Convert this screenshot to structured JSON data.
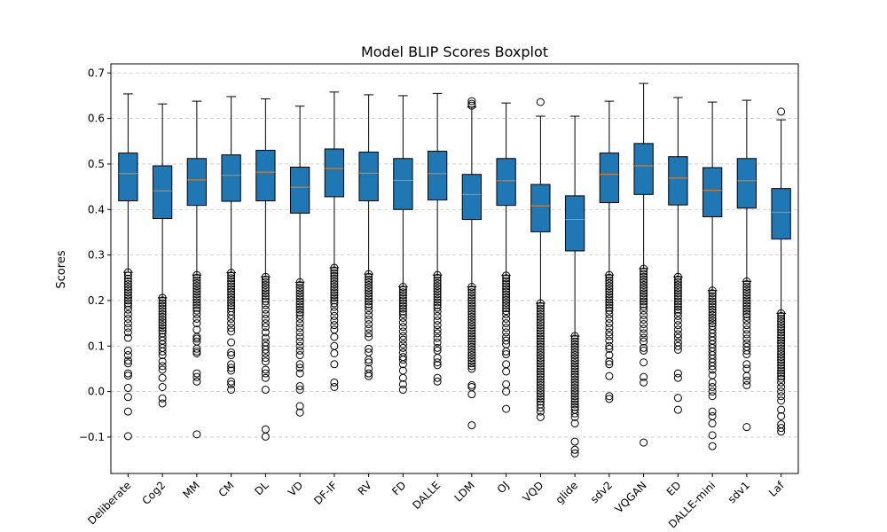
{
  "chart_data": {
    "type": "boxplot",
    "title": "Model BLIP Scores Boxplot",
    "xlabel": "",
    "ylabel": "Scores",
    "ylim": [
      -0.18,
      0.72
    ],
    "yticks": [
      -0.1,
      0.0,
      0.1,
      0.2,
      0.3,
      0.4,
      0.5,
      0.6,
      0.7
    ],
    "ytick_labels": [
      "−0.1",
      "0.0",
      "0.1",
      "0.2",
      "0.3",
      "0.4",
      "0.5",
      "0.6",
      "0.7"
    ],
    "grid": "y-dashed",
    "box_color": "#1f77b4",
    "median_color": "#ff7f0e",
    "categories": [
      "Deliberate",
      "Cog2",
      "MM",
      "CM",
      "DL",
      "VD",
      "DF-IF",
      "RV",
      "FD",
      "DALLE",
      "LDM",
      "OJ",
      "VQD",
      "glide",
      "sdv2",
      "VQGAN",
      "ED",
      "DALLE-mini",
      "sdv1",
      "Laf"
    ],
    "boxes": [
      {
        "label": "Deliberate",
        "whislo": 0.262,
        "q1": 0.419,
        "med": 0.479,
        "q3": 0.524,
        "whishi": 0.654,
        "fliers": [
          0.262,
          0.255,
          0.248,
          0.242,
          0.236,
          0.23,
          0.224,
          0.218,
          0.212,
          0.206,
          0.2,
          0.194,
          0.188,
          0.18,
          0.17,
          0.16,
          0.15,
          0.14,
          0.13,
          0.118,
          0.09,
          0.08,
          0.068,
          0.062,
          0.04,
          0.035,
          0.008,
          -0.012,
          -0.044,
          -0.098
        ]
      },
      {
        "label": "Cog2",
        "whislo": 0.206,
        "q1": 0.38,
        "med": 0.441,
        "q3": 0.496,
        "whishi": 0.632,
        "fliers": [
          0.206,
          0.2,
          0.194,
          0.188,
          0.182,
          0.176,
          0.17,
          0.164,
          0.158,
          0.152,
          0.146,
          0.14,
          0.134,
          0.128,
          0.12,
          0.112,
          0.104,
          0.096,
          0.088,
          0.08,
          0.066,
          0.056,
          0.048,
          0.03,
          0.01,
          -0.015,
          -0.026
        ]
      },
      {
        "label": "MM",
        "whislo": 0.256,
        "q1": 0.409,
        "med": 0.465,
        "q3": 0.512,
        "whishi": 0.638,
        "fliers": [
          0.256,
          0.25,
          0.244,
          0.238,
          0.232,
          0.226,
          0.22,
          0.214,
          0.208,
          0.202,
          0.196,
          0.19,
          0.184,
          0.178,
          0.17,
          0.16,
          0.15,
          0.136,
          0.12,
          0.116,
          0.11,
          0.094,
          0.088,
          0.084,
          0.04,
          0.032,
          0.022,
          -0.094
        ]
      },
      {
        "label": "CM",
        "whislo": 0.261,
        "q1": 0.418,
        "med": 0.475,
        "q3": 0.52,
        "whishi": 0.648,
        "fliers": [
          0.261,
          0.255,
          0.249,
          0.243,
          0.237,
          0.231,
          0.225,
          0.219,
          0.213,
          0.207,
          0.201,
          0.195,
          0.189,
          0.183,
          0.176,
          0.168,
          0.16,
          0.15,
          0.14,
          0.132,
          0.108,
          0.086,
          0.08,
          0.06,
          0.052,
          0.046,
          0.022,
          0.016,
          0.004
        ]
      },
      {
        "label": "DL",
        "whislo": 0.252,
        "q1": 0.419,
        "med": 0.482,
        "q3": 0.53,
        "whishi": 0.643,
        "fliers": [
          0.252,
          0.246,
          0.24,
          0.234,
          0.228,
          0.222,
          0.216,
          0.21,
          0.204,
          0.198,
          0.19,
          0.18,
          0.17,
          0.16,
          0.15,
          0.142,
          0.13,
          0.118,
          0.108,
          0.1,
          0.092,
          0.084,
          0.074,
          0.066,
          0.048,
          0.04,
          0.03,
          0.004,
          -0.083,
          -0.099
        ]
      },
      {
        "label": "VD",
        "whislo": 0.24,
        "q1": 0.392,
        "med": 0.449,
        "q3": 0.493,
        "whishi": 0.627,
        "fliers": [
          0.24,
          0.234,
          0.228,
          0.222,
          0.216,
          0.21,
          0.204,
          0.198,
          0.192,
          0.186,
          0.18,
          0.174,
          0.168,
          0.16,
          0.15,
          0.14,
          0.13,
          0.12,
          0.11,
          0.1,
          0.09,
          0.08,
          0.06,
          0.052,
          0.04,
          0.012,
          0.004,
          -0.032,
          -0.046
        ]
      },
      {
        "label": "DF-IF",
        "whislo": 0.272,
        "q1": 0.428,
        "med": 0.49,
        "q3": 0.533,
        "whishi": 0.658,
        "fliers": [
          0.272,
          0.266,
          0.26,
          0.254,
          0.248,
          0.242,
          0.236,
          0.23,
          0.224,
          0.218,
          0.212,
          0.206,
          0.2,
          0.194,
          0.186,
          0.176,
          0.166,
          0.156,
          0.146,
          0.136,
          0.12,
          0.1,
          0.084,
          0.06,
          0.02,
          0.01
        ]
      },
      {
        "label": "RV",
        "whislo": 0.258,
        "q1": 0.419,
        "med": 0.48,
        "q3": 0.526,
        "whishi": 0.652,
        "fliers": [
          0.258,
          0.252,
          0.246,
          0.24,
          0.234,
          0.228,
          0.222,
          0.216,
          0.21,
          0.204,
          0.198,
          0.192,
          0.186,
          0.178,
          0.168,
          0.158,
          0.148,
          0.138,
          0.128,
          0.12,
          0.094,
          0.086,
          0.07,
          0.064,
          0.05,
          0.04,
          0.034
        ]
      },
      {
        "label": "FD",
        "whislo": 0.23,
        "q1": 0.4,
        "med": 0.464,
        "q3": 0.512,
        "whishi": 0.65,
        "fliers": [
          0.23,
          0.224,
          0.218,
          0.212,
          0.206,
          0.2,
          0.194,
          0.188,
          0.182,
          0.176,
          0.17,
          0.162,
          0.152,
          0.142,
          0.132,
          0.122,
          0.114,
          0.104,
          0.096,
          0.086,
          0.076,
          0.07,
          0.06,
          0.046,
          0.03,
          0.016,
          0.004
        ]
      },
      {
        "label": "DALLE",
        "whislo": 0.256,
        "q1": 0.421,
        "med": 0.479,
        "q3": 0.528,
        "whishi": 0.655,
        "fliers": [
          0.256,
          0.25,
          0.244,
          0.238,
          0.232,
          0.226,
          0.22,
          0.214,
          0.208,
          0.202,
          0.196,
          0.19,
          0.184,
          0.176,
          0.166,
          0.156,
          0.146,
          0.136,
          0.128,
          0.118,
          0.108,
          0.096,
          0.09,
          0.074,
          0.064,
          0.058,
          0.03,
          0.022
        ]
      },
      {
        "label": "LDM",
        "whislo": 0.23,
        "q1": 0.378,
        "med": 0.433,
        "q3": 0.477,
        "whishi": 0.625,
        "fliers": [
          0.638,
          0.632,
          0.628,
          0.23,
          0.224,
          0.218,
          0.212,
          0.206,
          0.2,
          0.194,
          0.188,
          0.182,
          0.176,
          0.17,
          0.164,
          0.158,
          0.152,
          0.146,
          0.14,
          0.134,
          0.128,
          0.122,
          0.116,
          0.11,
          0.104,
          0.098,
          0.092,
          0.086,
          0.08,
          0.074,
          0.068,
          0.062,
          0.056,
          0.05,
          0.014,
          0.01,
          -0.006,
          -0.074
        ]
      },
      {
        "label": "OJ",
        "whislo": 0.255,
        "q1": 0.409,
        "med": 0.463,
        "q3": 0.512,
        "whishi": 0.634,
        "fliers": [
          0.255,
          0.249,
          0.243,
          0.237,
          0.231,
          0.225,
          0.219,
          0.213,
          0.207,
          0.201,
          0.195,
          0.189,
          0.183,
          0.177,
          0.17,
          0.16,
          0.15,
          0.14,
          0.13,
          0.12,
          0.112,
          0.104,
          0.088,
          0.082,
          0.06,
          0.044,
          0.016,
          0.0,
          -0.038
        ]
      },
      {
        "label": "VQD",
        "whislo": 0.194,
        "q1": 0.351,
        "med": 0.408,
        "q3": 0.455,
        "whishi": 0.605,
        "fliers": [
          0.636,
          0.194,
          0.188,
          0.182,
          0.176,
          0.17,
          0.164,
          0.158,
          0.152,
          0.146,
          0.14,
          0.134,
          0.128,
          0.122,
          0.116,
          0.11,
          0.104,
          0.098,
          0.092,
          0.086,
          0.08,
          0.074,
          0.068,
          0.062,
          0.056,
          0.05,
          0.044,
          0.038,
          0.032,
          0.026,
          0.02,
          0.014,
          0.008,
          0.002,
          -0.004,
          -0.01,
          -0.016,
          -0.022,
          -0.028,
          -0.036,
          -0.044,
          -0.056
        ]
      },
      {
        "label": "glide",
        "whislo": 0.122,
        "q1": 0.309,
        "med": 0.378,
        "q3": 0.43,
        "whishi": 0.605,
        "fliers": [
          0.122,
          0.116,
          0.11,
          0.104,
          0.098,
          0.092,
          0.086,
          0.08,
          0.074,
          0.068,
          0.062,
          0.056,
          0.05,
          0.044,
          0.038,
          0.032,
          0.026,
          0.02,
          0.014,
          0.008,
          0.002,
          -0.004,
          -0.01,
          -0.016,
          -0.022,
          -0.028,
          -0.034,
          -0.04,
          -0.048,
          -0.056,
          -0.07,
          -0.11,
          -0.128,
          -0.136
        ]
      },
      {
        "label": "sdv2",
        "whislo": 0.256,
        "q1": 0.415,
        "med": 0.477,
        "q3": 0.524,
        "whishi": 0.638,
        "fliers": [
          0.256,
          0.25,
          0.244,
          0.238,
          0.232,
          0.226,
          0.22,
          0.214,
          0.208,
          0.202,
          0.196,
          0.19,
          0.184,
          0.178,
          0.17,
          0.16,
          0.15,
          0.14,
          0.13,
          0.122,
          0.112,
          0.1,
          0.094,
          0.08,
          0.066,
          0.06,
          0.034,
          -0.01,
          -0.016
        ]
      },
      {
        "label": "VQGAN",
        "whislo": 0.27,
        "q1": 0.433,
        "med": 0.496,
        "q3": 0.545,
        "whishi": 0.677,
        "fliers": [
          0.27,
          0.264,
          0.258,
          0.252,
          0.246,
          0.24,
          0.234,
          0.228,
          0.222,
          0.216,
          0.21,
          0.204,
          0.198,
          0.192,
          0.186,
          0.178,
          0.168,
          0.158,
          0.148,
          0.138,
          0.128,
          0.118,
          0.11,
          0.096,
          0.09,
          0.064,
          0.032,
          0.02,
          -0.112
        ]
      },
      {
        "label": "ED",
        "whislo": 0.252,
        "q1": 0.41,
        "med": 0.469,
        "q3": 0.516,
        "whishi": 0.646,
        "fliers": [
          0.252,
          0.246,
          0.24,
          0.234,
          0.228,
          0.222,
          0.216,
          0.21,
          0.204,
          0.198,
          0.192,
          0.186,
          0.18,
          0.174,
          0.166,
          0.156,
          0.146,
          0.136,
          0.126,
          0.118,
          0.108,
          0.1,
          0.092,
          0.04,
          0.03,
          -0.014,
          -0.04
        ]
      },
      {
        "label": "DALLE-mini",
        "whislo": 0.222,
        "q1": 0.384,
        "med": 0.442,
        "q3": 0.492,
        "whishi": 0.636,
        "fliers": [
          0.222,
          0.216,
          0.21,
          0.204,
          0.198,
          0.192,
          0.186,
          0.18,
          0.174,
          0.168,
          0.162,
          0.156,
          0.15,
          0.144,
          0.136,
          0.128,
          0.12,
          0.112,
          0.104,
          0.096,
          0.088,
          0.08,
          0.072,
          0.064,
          0.056,
          0.048,
          0.036,
          0.02,
          0.01,
          0.0,
          -0.01,
          -0.044,
          -0.054,
          -0.07,
          -0.096,
          -0.12
        ]
      },
      {
        "label": "sdv1",
        "whislo": 0.242,
        "q1": 0.403,
        "med": 0.463,
        "q3": 0.512,
        "whishi": 0.64,
        "fliers": [
          0.242,
          0.236,
          0.23,
          0.224,
          0.218,
          0.212,
          0.206,
          0.2,
          0.194,
          0.188,
          0.182,
          0.176,
          0.17,
          0.164,
          0.156,
          0.146,
          0.136,
          0.126,
          0.116,
          0.106,
          0.098,
          0.09,
          0.082,
          0.06,
          0.05,
          0.034,
          0.024,
          0.014,
          -0.078
        ]
      },
      {
        "label": "Laf",
        "whislo": 0.172,
        "q1": 0.335,
        "med": 0.394,
        "q3": 0.446,
        "whishi": 0.597,
        "fliers": [
          0.615,
          0.172,
          0.166,
          0.16,
          0.154,
          0.148,
          0.142,
          0.136,
          0.13,
          0.124,
          0.118,
          0.112,
          0.106,
          0.1,
          0.094,
          0.088,
          0.082,
          0.076,
          0.07,
          0.064,
          0.058,
          0.052,
          0.046,
          0.04,
          0.034,
          0.028,
          0.02,
          0.01,
          0.0,
          -0.01,
          -0.02,
          -0.04,
          -0.054,
          -0.072,
          -0.08,
          -0.088
        ]
      }
    ]
  }
}
